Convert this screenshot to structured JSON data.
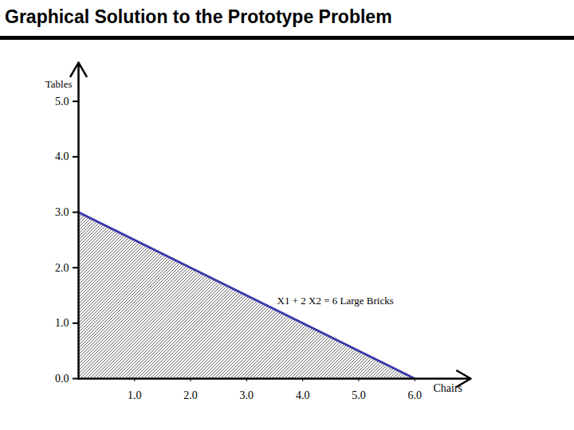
{
  "chart_data": {
    "type": "area",
    "title": "Graphical Solution to the Prototype Problem",
    "xlabel": "Chairs",
    "ylabel": "Tables",
    "x": [
      0,
      6
    ],
    "values": [
      3,
      0
    ],
    "color": "#3a3aaa",
    "annotation": "X1 + 2 X2 = 6 Large Bricks",
    "xlim": [
      0,
      7
    ],
    "ylim": [
      0,
      5.7
    ],
    "xticks": [
      1,
      2,
      3,
      4,
      5,
      6
    ],
    "yticks": [
      0,
      1,
      2,
      3,
      4,
      5
    ]
  }
}
